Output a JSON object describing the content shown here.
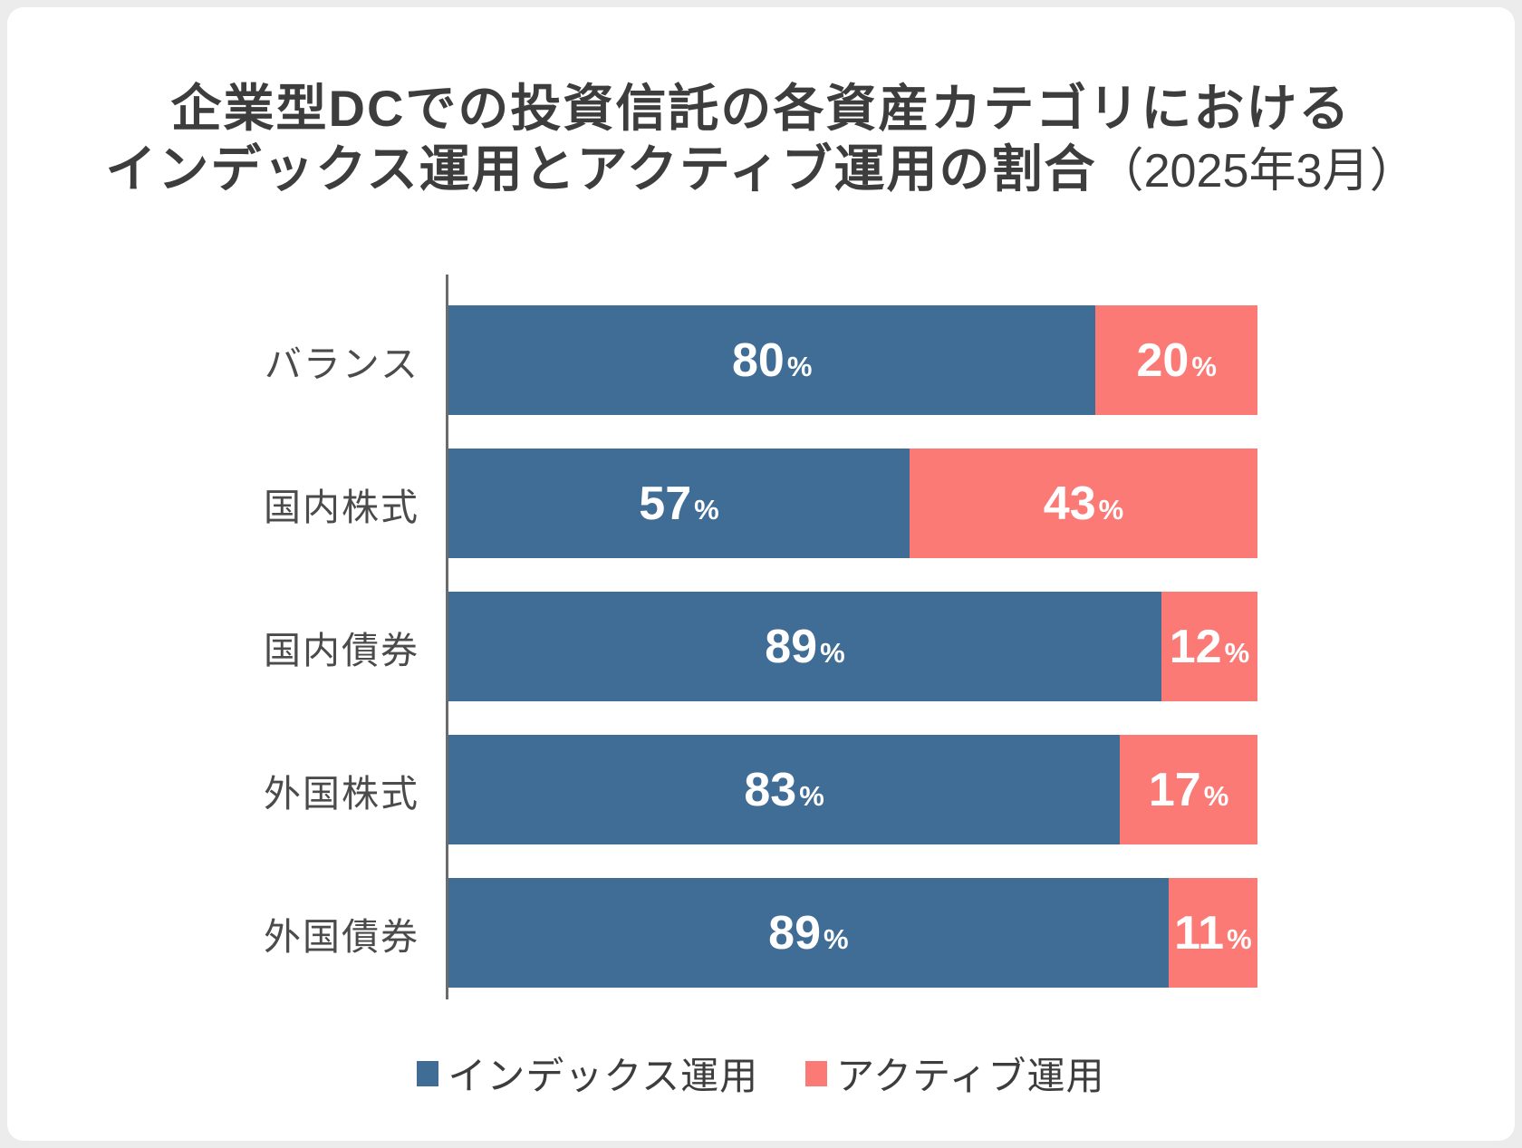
{
  "title": {
    "line1": "企業型DCでの投資信託の各資産カテゴリにおける",
    "line2_main": "インデックス運用とアクティブ運用の割合",
    "line2_suffix": "（2025年3月）"
  },
  "legend": [
    {
      "label": "インデックス運用",
      "color": "#3F6D96"
    },
    {
      "label": "アクティブ運用",
      "color": "#FC7A76"
    }
  ],
  "colors": {
    "index_blue": "#3F6D96",
    "active_salmon": "#FC7A76",
    "axis_gray": "#6B6B6B",
    "title_text": "#3D3D3D",
    "category_text": "#4B4B4B",
    "value_text": "#FFFFFF",
    "frame_background": "#ECECEC",
    "card_background": "#FFFFFF"
  },
  "chart_data": {
    "type": "bar",
    "orientation": "horizontal",
    "stacked": true,
    "title": "企業型DCでの投資信託の各資産カテゴリにおけるインデックス運用とアクティブ運用の割合（2025年3月）",
    "categories": [
      "バランス",
      "国内株式",
      "国内債券",
      "外国株式",
      "外国債券"
    ],
    "series": [
      {
        "name": "インデックス運用",
        "color": "#3F6D96",
        "values": [
          80,
          57,
          89,
          83,
          89
        ]
      },
      {
        "name": "アクティブ運用",
        "color": "#FC7A76",
        "values": [
          20,
          43,
          12,
          17,
          11
        ]
      }
    ],
    "value_suffix": "%",
    "xlim": [
      0,
      100
    ],
    "grid": false,
    "legend_position": "bottom"
  }
}
